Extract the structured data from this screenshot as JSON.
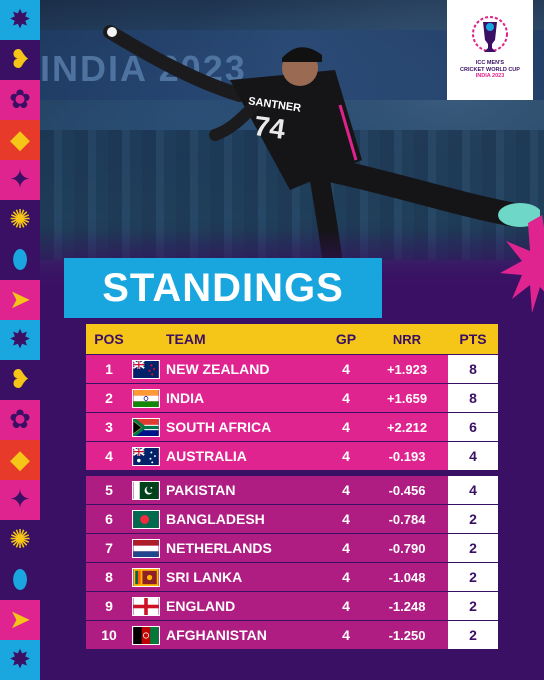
{
  "colors": {
    "background": "#3a1064",
    "header_bg": "#f5c518",
    "top_row_bg": "#df2490",
    "bottom_row_bg": "#b01d82",
    "title_bg": "#19a6df",
    "points_bg": "#ffffff"
  },
  "photo": {
    "banner_text": "INDIA 2023",
    "jersey_name": "SANTNER",
    "jersey_number": "74"
  },
  "logo": {
    "icon": "world-cup-trophy-icon",
    "line1": "ICC MEN'S",
    "line2": "CRICKET WORLD CUP",
    "line3": "INDIA 2023"
  },
  "title": "STANDINGS",
  "table": {
    "headers": {
      "pos": "POS",
      "team": "TEAM",
      "gp": "GP",
      "nrr": "NRR",
      "pts": "PTS"
    },
    "rows": [
      {
        "pos": "1",
        "flag": "new-zealand-flag-icon",
        "team": "NEW ZEALAND",
        "gp": "4",
        "nrr": "+1.923",
        "pts": "8"
      },
      {
        "pos": "2",
        "flag": "india-flag-icon",
        "team": "INDIA",
        "gp": "4",
        "nrr": "+1.659",
        "pts": "8"
      },
      {
        "pos": "3",
        "flag": "south-africa-flag-icon",
        "team": "SOUTH AFRICA",
        "gp": "4",
        "nrr": "+2.212",
        "pts": "6"
      },
      {
        "pos": "4",
        "flag": "australia-flag-icon",
        "team": "AUSTRALIA",
        "gp": "4",
        "nrr": "-0.193",
        "pts": "4"
      },
      {
        "pos": "5",
        "flag": "pakistan-flag-icon",
        "team": "PAKISTAN",
        "gp": "4",
        "nrr": "-0.456",
        "pts": "4"
      },
      {
        "pos": "6",
        "flag": "bangladesh-flag-icon",
        "team": "BANGLADESH",
        "gp": "4",
        "nrr": "-0.784",
        "pts": "2"
      },
      {
        "pos": "7",
        "flag": "netherlands-flag-icon",
        "team": "NETHERLANDS",
        "gp": "4",
        "nrr": "-0.790",
        "pts": "2"
      },
      {
        "pos": "8",
        "flag": "sri-lanka-flag-icon",
        "team": "SRI LANKA",
        "gp": "4",
        "nrr": "-1.048",
        "pts": "2"
      },
      {
        "pos": "9",
        "flag": "england-flag-icon",
        "team": "ENGLAND",
        "gp": "4",
        "nrr": "-1.248",
        "pts": "2"
      },
      {
        "pos": "10",
        "flag": "afghanistan-flag-icon",
        "team": "AFGHANISTAN",
        "gp": "4",
        "nrr": "-1.250",
        "pts": "2"
      }
    ]
  }
}
